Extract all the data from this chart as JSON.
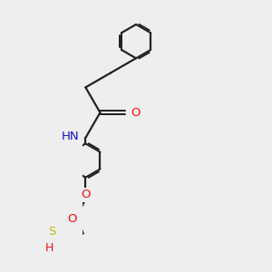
{
  "bg_color": "#eeeeee",
  "bond_color": "#222222",
  "bond_lw": 1.6,
  "atom_colors": {
    "O": "#ee1111",
    "N": "#1111cc",
    "S": "#bbbb00",
    "H": "#555555",
    "C": "#222222"
  },
  "font_size": 9.5
}
